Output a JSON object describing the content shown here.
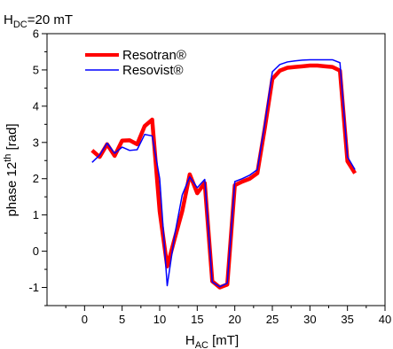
{
  "chart_data": {
    "type": "line",
    "annotation": {
      "main": "H",
      "sub": "DC",
      "rest": "=20 mT"
    },
    "xlabel": {
      "main": "H",
      "sub": "AC",
      "rest": " [mT]"
    },
    "ylabel": {
      "main": "phase 12",
      "sup": "th",
      "rest": " [rad]"
    },
    "xlim": [
      -5,
      40
    ],
    "ylim": [
      -1.5,
      6
    ],
    "xticks": [
      0,
      5,
      10,
      15,
      20,
      25,
      30,
      35,
      40
    ],
    "yticks": [
      -1,
      0,
      1,
      2,
      3,
      4,
      5,
      6
    ],
    "grid": false,
    "legend_position": "top-left",
    "series": [
      {
        "name": "Resotran®",
        "color": "#ff0000",
        "x": [
          1,
          2,
          3,
          4,
          5,
          6,
          7,
          8,
          9,
          10,
          11,
          12,
          13,
          14,
          15,
          16,
          17,
          18,
          19,
          20,
          21,
          22,
          23,
          24,
          25,
          26,
          27,
          28,
          29,
          30,
          31,
          32,
          33,
          34,
          35,
          36
        ],
        "values": [
          2.78,
          2.6,
          2.95,
          2.63,
          3.05,
          3.06,
          2.95,
          3.45,
          3.63,
          1.1,
          -0.42,
          0.35,
          1.1,
          2.12,
          1.6,
          1.88,
          -0.83,
          -1.0,
          -0.92,
          1.82,
          1.92,
          2.0,
          2.15,
          3.4,
          4.75,
          4.98,
          5.06,
          5.08,
          5.1,
          5.12,
          5.12,
          5.1,
          5.08,
          4.98,
          2.48,
          2.15
        ]
      },
      {
        "name": "Resovist®",
        "color": "#0000ff",
        "x": [
          1,
          2,
          3,
          4,
          5,
          6,
          7,
          8,
          9,
          10,
          11,
          12,
          13,
          14,
          15,
          16,
          17,
          18,
          19,
          20,
          21,
          22,
          23,
          24,
          25,
          26,
          27,
          28,
          29,
          30,
          31,
          32,
          33,
          34,
          35,
          36
        ],
        "values": [
          2.45,
          2.65,
          2.98,
          2.7,
          2.87,
          2.78,
          2.8,
          3.22,
          3.18,
          2.0,
          -0.95,
          0.45,
          1.55,
          2.05,
          1.75,
          1.98,
          -0.85,
          -0.98,
          -0.88,
          1.92,
          2.0,
          2.1,
          2.25,
          3.52,
          4.95,
          5.15,
          5.22,
          5.25,
          5.27,
          5.28,
          5.28,
          5.28,
          5.28,
          5.2,
          2.6,
          2.25
        ]
      }
    ]
  }
}
